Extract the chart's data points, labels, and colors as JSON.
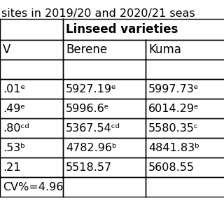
{
  "title_text": "sites in 2019/20 and 2020/21 seas",
  "header_row1_col0": "Linseed varieties",
  "header_row2": [
    "V",
    "Berene",
    "Kuma"
  ],
  "rows": [
    [
      "",
      "",
      ""
    ],
    [
      ".01ᵉ",
      "5927.19ᵉ",
      "5997.73ᵉ"
    ],
    [
      ".49ᵉ",
      "5996.6ᵉ",
      "6014.29ᵉ"
    ],
    [
      ".80ᶜᵈ",
      "5367.54ᶜᵈ",
      "5580.35ᶜ"
    ],
    [
      ".53ᵇ",
      "4782.96ᵇ",
      "4841.83ᵇ"
    ],
    [
      ".21",
      "5518.57",
      "5608.55"
    ],
    [
      "CV%=4.96",
      "",
      ""
    ]
  ],
  "title_fontsize": 11.5,
  "header_fontsize": 12,
  "data_fontsize": 11.5,
  "bg_color": "#ffffff",
  "line_color": "#000000",
  "text_color": "#000000"
}
